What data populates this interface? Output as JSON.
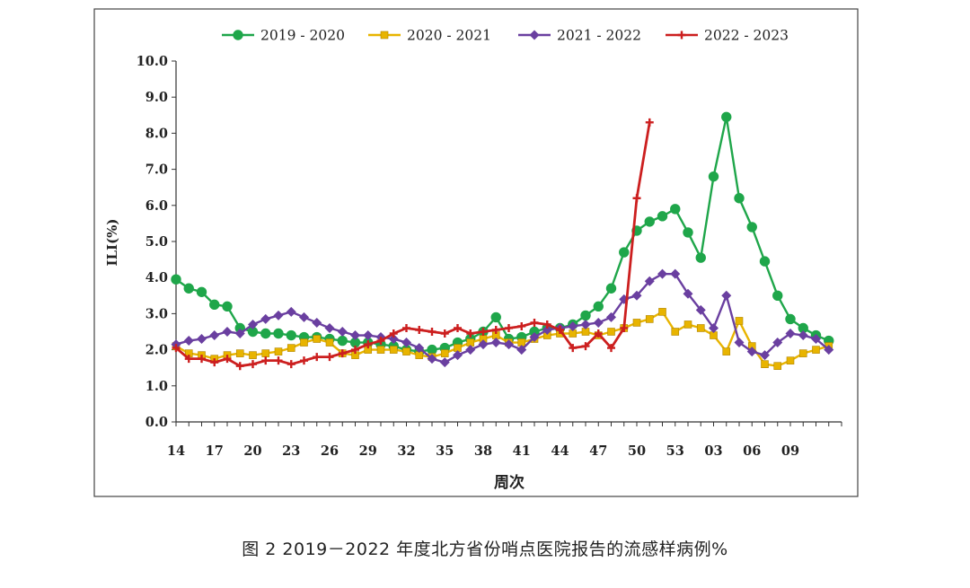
{
  "caption": "图 2   2019－2022 年度北方省份哨点医院报告的流感样病例%",
  "chart_data": {
    "type": "line",
    "ylabel": "ILI(%)",
    "xlabel": "周次",
    "ylim": [
      0,
      10
    ],
    "yticks": [
      "0.0",
      "1.0",
      "2.0",
      "3.0",
      "4.0",
      "5.0",
      "6.0",
      "7.0",
      "8.0",
      "9.0",
      "10.0"
    ],
    "x_tick_labels": [
      "14",
      "17",
      "20",
      "23",
      "26",
      "29",
      "32",
      "35",
      "38",
      "41",
      "44",
      "47",
      "50",
      "53",
      "03",
      "06",
      "09"
    ],
    "legend_position": "top",
    "grid": false,
    "series": [
      {
        "name": "2019 - 2020",
        "color": "#1fa64a",
        "marker": "circle",
        "values": [
          3.95,
          3.7,
          3.6,
          3.25,
          3.2,
          2.6,
          2.5,
          2.45,
          2.45,
          2.4,
          2.35,
          2.35,
          2.3,
          2.25,
          2.2,
          2.2,
          2.15,
          2.1,
          2.0,
          1.95,
          2.0,
          2.05,
          2.2,
          2.3,
          2.5,
          2.9,
          2.3,
          2.35,
          2.5,
          2.6,
          2.6,
          2.7,
          2.95,
          3.2,
          3.7,
          4.7,
          5.3,
          5.55,
          5.7,
          5.9,
          5.25,
          4.55,
          6.8,
          8.45,
          6.2,
          5.4,
          4.45,
          3.5,
          2.85,
          2.6,
          2.4,
          2.25
        ]
      },
      {
        "name": "2020 - 2021",
        "color": "#e8b400",
        "marker": "square",
        "values": [
          2.1,
          1.9,
          1.85,
          1.75,
          1.85,
          1.9,
          1.85,
          1.9,
          1.95,
          2.05,
          2.2,
          2.3,
          2.2,
          1.9,
          1.85,
          2.0,
          2.0,
          2.0,
          1.95,
          1.85,
          1.8,
          1.9,
          2.05,
          2.2,
          2.3,
          2.4,
          2.2,
          2.2,
          2.3,
          2.4,
          2.45,
          2.45,
          2.5,
          2.4,
          2.5,
          2.6,
          2.75,
          2.85,
          3.05,
          2.5,
          2.7,
          2.6,
          2.4,
          1.95,
          2.8,
          2.1,
          1.6,
          1.55,
          1.7,
          1.9,
          2.0,
          2.1
        ]
      },
      {
        "name": "2021 - 2022",
        "color": "#6a3fa0",
        "marker": "diamond",
        "values": [
          2.15,
          2.25,
          2.3,
          2.4,
          2.5,
          2.45,
          2.7,
          2.85,
          2.95,
          3.05,
          2.9,
          2.75,
          2.6,
          2.5,
          2.4,
          2.4,
          2.35,
          2.3,
          2.2,
          2.05,
          1.75,
          1.65,
          1.85,
          2.0,
          2.15,
          2.2,
          2.15,
          2.0,
          2.35,
          2.55,
          2.6,
          2.65,
          2.7,
          2.75,
          2.9,
          3.4,
          3.5,
          3.9,
          4.1,
          4.1,
          3.55,
          3.1,
          2.6,
          3.5,
          2.2,
          1.95,
          1.85,
          2.2,
          2.45,
          2.4,
          2.3,
          2.0
        ]
      },
      {
        "name": "2022 - 2023",
        "color": "#cc1f1f",
        "marker": "plus",
        "values": [
          2.05,
          1.75,
          1.75,
          1.65,
          1.75,
          1.55,
          1.6,
          1.7,
          1.7,
          1.6,
          1.7,
          1.8,
          1.8,
          1.9,
          2.0,
          2.15,
          2.25,
          2.45,
          2.6,
          2.55,
          2.5,
          2.45,
          2.6,
          2.45,
          2.5,
          2.55,
          2.6,
          2.65,
          2.75,
          2.7,
          2.55,
          2.05,
          2.1,
          2.45,
          2.05,
          2.6,
          6.2,
          8.3
        ]
      }
    ]
  }
}
